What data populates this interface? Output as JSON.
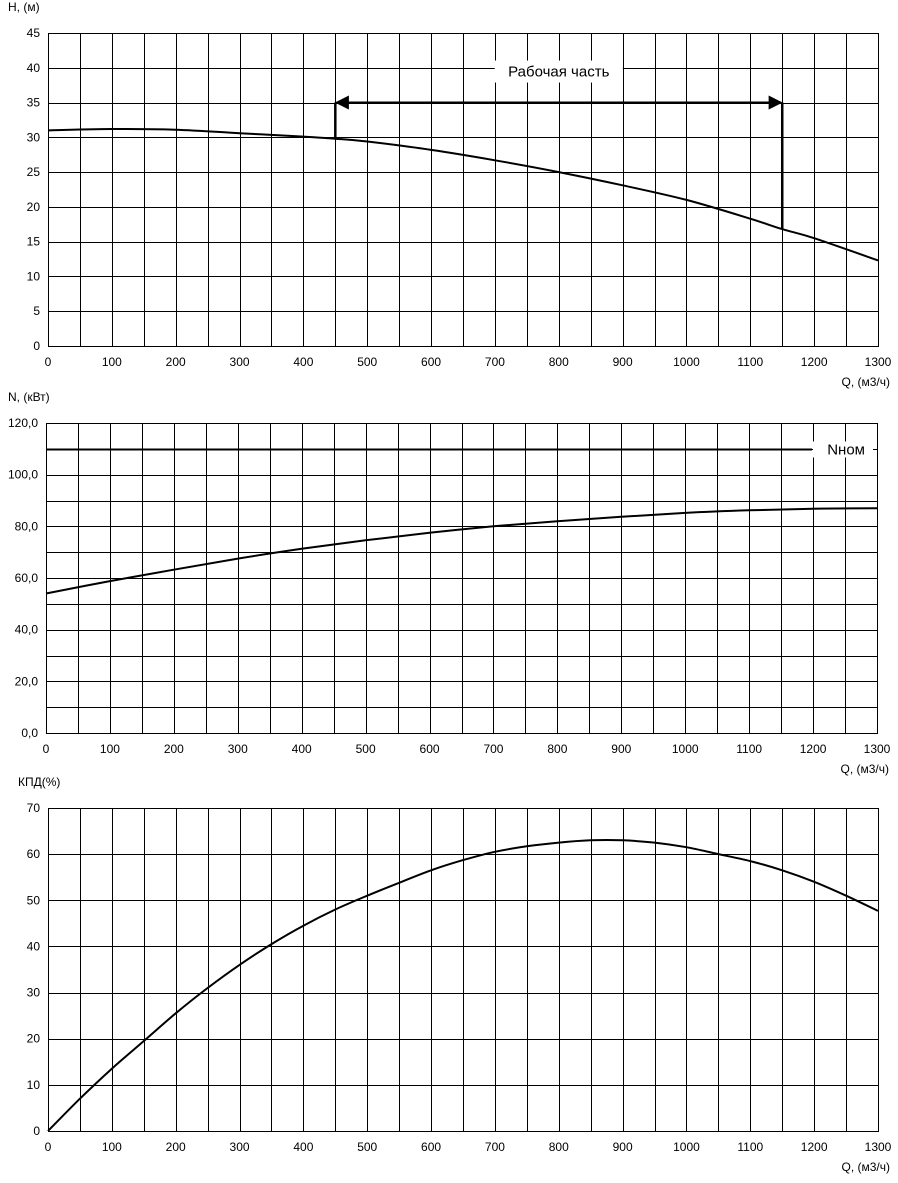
{
  "chart_data": [
    {
      "type": "line",
      "title": "",
      "xlabel": "Q, (м3/ч)",
      "ylabel": "H, (м)",
      "xlim": [
        0,
        1300
      ],
      "ylim": [
        0,
        45
      ],
      "x_ticks": [
        "0",
        "100",
        "200",
        "300",
        "400",
        "500",
        "600",
        "700",
        "800",
        "900",
        "1000",
        "1100",
        "1200",
        "1300"
      ],
      "y_ticks": [
        "0",
        "5",
        "10",
        "15",
        "20",
        "25",
        "30",
        "35",
        "40",
        "45"
      ],
      "grid": true,
      "series": [
        {
          "x": [
            0,
            100,
            200,
            300,
            400,
            450,
            500,
            600,
            700,
            800,
            900,
            1000,
            1100,
            1150,
            1200,
            1300
          ],
          "y": [
            31.0,
            31.2,
            31.1,
            30.6,
            30.1,
            29.8,
            29.4,
            28.2,
            26.7,
            25.0,
            23.1,
            21.0,
            18.3,
            16.8,
            15.5,
            12.3
          ]
        }
      ],
      "annotations": [
        {
          "text": "Рабочая часть",
          "x_start": 450,
          "x_end": 1150,
          "y_arrow": 35,
          "y_start_bottom": 29.8,
          "y_end_bottom": 16.8
        }
      ]
    },
    {
      "type": "line",
      "title": "",
      "xlabel": "Q, (м3/ч)",
      "ylabel": "N, (кВт)",
      "xlim": [
        0,
        1300
      ],
      "ylim": [
        0,
        120
      ],
      "x_ticks": [
        "0",
        "100",
        "200",
        "300",
        "400",
        "500",
        "600",
        "700",
        "800",
        "900",
        "1000",
        "1100",
        "1200",
        "1300"
      ],
      "y_ticks": [
        "0,0",
        "20,0",
        "40,0",
        "60,0",
        "80,0",
        "100,0",
        "120,0"
      ],
      "grid": true,
      "series": [
        {
          "x": [
            0,
            100,
            200,
            300,
            400,
            500,
            600,
            700,
            800,
            900,
            1000,
            1100,
            1200,
            1300
          ],
          "y": [
            54.0,
            58.8,
            63.2,
            67.5,
            71.3,
            74.6,
            77.5,
            80.0,
            82.0,
            83.7,
            85.2,
            86.2,
            86.8,
            87.0
          ]
        }
      ],
      "reference_line": {
        "label": "Nном",
        "y": 110
      }
    },
    {
      "type": "line",
      "title": "",
      "xlabel": "Q, (м3/ч)",
      "ylabel": "КПД(%)",
      "xlim": [
        0,
        1300
      ],
      "ylim": [
        0,
        70
      ],
      "x_ticks": [
        "0",
        "100",
        "200",
        "300",
        "400",
        "500",
        "600",
        "700",
        "800",
        "900",
        "1000",
        "1100",
        "1200",
        "1300"
      ],
      "y_ticks": [
        "0",
        "10",
        "20",
        "30",
        "40",
        "50",
        "60",
        "70"
      ],
      "grid": true,
      "series": [
        {
          "x": [
            0,
            50,
            100,
            150,
            200,
            250,
            300,
            350,
            400,
            450,
            500,
            550,
            600,
            650,
            700,
            750,
            800,
            850,
            900,
            950,
            1000,
            1050,
            1100,
            1150,
            1200,
            1250,
            1300
          ],
          "y": [
            0,
            7.0,
            13.5,
            19.5,
            25.5,
            31.0,
            36.0,
            40.5,
            44.5,
            48.0,
            51.0,
            53.8,
            56.5,
            58.7,
            60.5,
            61.7,
            62.5,
            63.0,
            63.0,
            62.5,
            61.5,
            60.0,
            58.5,
            56.5,
            54.0,
            51.0,
            47.7
          ]
        }
      ]
    }
  ]
}
